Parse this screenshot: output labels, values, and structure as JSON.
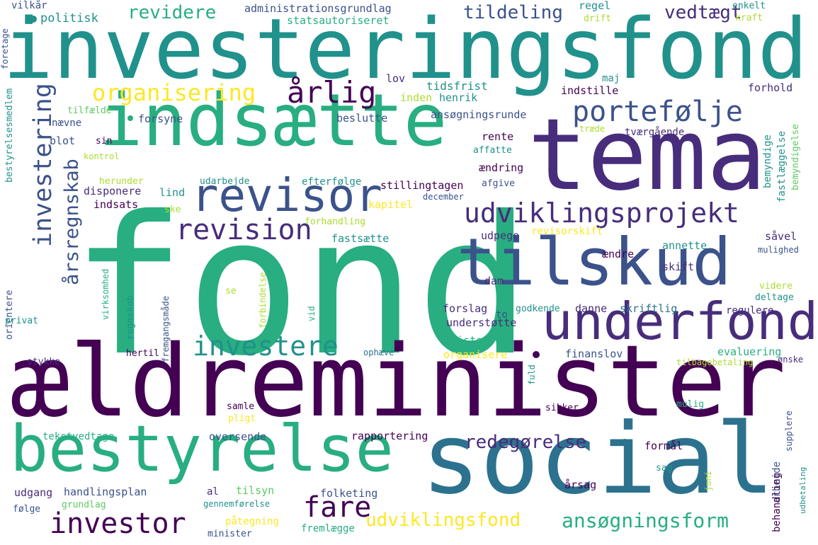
{
  "palette": {
    "c1": "#440154",
    "c2": "#472d7b",
    "c3": "#3b528b",
    "c4": "#2c728e",
    "c5": "#21918c",
    "c6": "#28ae80",
    "c7": "#5ec962",
    "c8": "#addc30",
    "c9": "#fde725"
  },
  "words": [
    {
      "t": "fond",
      "c": "c6"
    },
    {
      "t": "ældreminister",
      "c": "c1"
    },
    {
      "t": "investeringsfond",
      "c": "c5"
    },
    {
      "t": "tema",
      "c": "c2"
    },
    {
      "t": "social",
      "c": "c4"
    },
    {
      "t": "indsætte",
      "c": "c6"
    },
    {
      "t": "bestyrelse",
      "c": "c6"
    },
    {
      "t": "tilskud",
      "c": "c3"
    },
    {
      "t": "underfond",
      "c": "c2"
    },
    {
      "t": "revisor",
      "c": "c3"
    },
    {
      "t": "udviklingsprojekt",
      "c": "c2"
    },
    {
      "t": "portefølje",
      "c": "c3"
    },
    {
      "t": "investering",
      "c": "c3"
    },
    {
      "t": "årsregnskab",
      "c": "c3"
    },
    {
      "t": "revision",
      "c": "c2"
    },
    {
      "t": "investere",
      "c": "c5"
    },
    {
      "t": "investor",
      "c": "c1"
    },
    {
      "t": "fare",
      "c": "c1"
    },
    {
      "t": "årlig",
      "c": "c1"
    },
    {
      "t": "organisering",
      "c": "c9"
    },
    {
      "t": "ansøgningsform",
      "c": "c6"
    },
    {
      "t": "udviklingsfond",
      "c": "c9"
    },
    {
      "t": "redegørelse",
      "c": "c2"
    },
    {
      "t": "revidere",
      "c": "c6"
    },
    {
      "t": "tildeling",
      "c": "c3"
    },
    {
      "t": "vedtægt",
      "c": "c2"
    },
    {
      "t": "politisk",
      "c": "c5"
    },
    {
      "t": "administrationsgrundlag",
      "c": "c3"
    },
    {
      "t": "statsautoriseret",
      "c": "c6"
    },
    {
      "t": "regel",
      "c": "c5"
    },
    {
      "t": "drift",
      "c": "c8"
    },
    {
      "t": "enkelt",
      "c": "c5"
    },
    {
      "t": "kraft",
      "c": "c8"
    },
    {
      "t": "vilkår",
      "c": "c3"
    },
    {
      "t": "foretage",
      "c": "c3"
    },
    {
      "t": "lov",
      "c": "c2"
    },
    {
      "t": "maj",
      "c": "c5"
    },
    {
      "t": "tidsfrist",
      "c": "c5"
    },
    {
      "t": "inden",
      "c": "c8"
    },
    {
      "t": "henrik",
      "c": "c5"
    },
    {
      "t": "indstille",
      "c": "c1"
    },
    {
      "t": "forhold",
      "c": "c2"
    },
    {
      "t": "fastlæggelse",
      "c": "c5"
    },
    {
      "t": "bemyndigelse",
      "c": "c7"
    },
    {
      "t": "bemyndige",
      "c": "c5"
    },
    {
      "t": "tilfælde",
      "c": "c7"
    },
    {
      "t": "forsyne",
      "c": "c3"
    },
    {
      "t": "nævne",
      "c": "c3"
    },
    {
      "t": "beslutte",
      "c": "c3"
    },
    {
      "t": "ansøgningsrunde",
      "c": "c3"
    },
    {
      "t": "rente",
      "c": "c1"
    },
    {
      "t": "tværgående",
      "c": "c2"
    },
    {
      "t": "træde",
      "c": "c8"
    },
    {
      "t": "affatte",
      "c": "c5"
    },
    {
      "t": "blot",
      "c": "c3"
    },
    {
      "t": "sin",
      "c": "c1"
    },
    {
      "t": "kontrol",
      "c": "c8"
    },
    {
      "t": "ændring",
      "c": "c1"
    },
    {
      "t": "herunder",
      "c": "c8"
    },
    {
      "t": "udarbejde",
      "c": "c5"
    },
    {
      "t": "efterfølge",
      "c": "c5"
    },
    {
      "t": "stillingtagen",
      "c": "c1"
    },
    {
      "t": "afgive",
      "c": "c3"
    },
    {
      "t": "december",
      "c": "c3"
    },
    {
      "t": "disponere",
      "c": "c2"
    },
    {
      "t": "indsats",
      "c": "c1"
    },
    {
      "t": "lind",
      "c": "c5"
    },
    {
      "t": "kapitel",
      "c": "c9"
    },
    {
      "t": "ske",
      "c": "c8"
    },
    {
      "t": "forhandling",
      "c": "c8"
    },
    {
      "t": "udpege",
      "c": "c2"
    },
    {
      "t": "revisorskift",
      "c": "c9"
    },
    {
      "t": "såvel",
      "c": "c2"
    },
    {
      "t": "annette",
      "c": "c5"
    },
    {
      "t": "mulighed",
      "c": "c3"
    },
    {
      "t": "fastsætte",
      "c": "c5"
    },
    {
      "t": "ændre",
      "c": "c1"
    },
    {
      "t": "skift",
      "c": "c2"
    },
    {
      "t": "bestyrelsesmedlem",
      "c": "c5"
    },
    {
      "t": "orientere",
      "c": "c3"
    },
    {
      "t": "privat",
      "c": "c5"
    },
    {
      "t": "virksomhed",
      "c": "c6"
    },
    {
      "t": "forbindelse",
      "c": "c8"
    },
    {
      "t": "regnskab",
      "c": "c5"
    },
    {
      "t": "fremgangsmåde",
      "c": "c3"
    },
    {
      "t": "se",
      "c": "c8"
    },
    {
      "t": "vid",
      "c": "c6"
    },
    {
      "t": "dam",
      "c": "c2"
    },
    {
      "t": "forslag",
      "c": "c2"
    },
    {
      "t": "to",
      "c": "c3"
    },
    {
      "t": "godkende",
      "c": "c5"
    },
    {
      "t": "danne",
      "c": "c2"
    },
    {
      "t": "skriftlig",
      "c": "c4"
    },
    {
      "t": "regulere",
      "c": "c2"
    },
    {
      "t": "deltage",
      "c": "c5"
    },
    {
      "t": "videre",
      "c": "c8"
    },
    {
      "t": "understøtte",
      "c": "c2"
    },
    {
      "t": "kristensen",
      "c": "c6"
    },
    {
      "t": "organisere",
      "c": "c9"
    },
    {
      "t": "evaluering",
      "c": "c6"
    },
    {
      "t": "finanslov",
      "c": "c3"
    },
    {
      "t": "hertil",
      "c": "c1"
    },
    {
      "t": "ophæve",
      "c": "c4"
    },
    {
      "t": "stykke",
      "c": "c2"
    },
    {
      "t": "tilbagebetaling",
      "c": "c8"
    },
    {
      "t": "ønske",
      "c": "c2"
    },
    {
      "t": "fuld",
      "c": "c5"
    },
    {
      "t": "sikker",
      "c": "c1"
    },
    {
      "t": "mulig",
      "c": "c6"
    },
    {
      "t": "samle",
      "c": "c1"
    },
    {
      "t": "pligt",
      "c": "c9"
    },
    {
      "t": "supplere",
      "c": "c3"
    },
    {
      "t": "udbetaling",
      "c": "c5"
    },
    {
      "t": "tekstvedtage",
      "c": "c6"
    },
    {
      "t": "oversende",
      "c": "c3"
    },
    {
      "t": "rapportering",
      "c": "c1"
    },
    {
      "t": "formål",
      "c": "c1"
    },
    {
      "t": "arbejde",
      "c": "c3"
    },
    {
      "t": "behandling",
      "c": "c1"
    },
    {
      "t": "juni",
      "c": "c8"
    },
    {
      "t": "sag",
      "c": "c5"
    },
    {
      "t": "årsag",
      "c": "c1"
    },
    {
      "t": "udgang",
      "c": "c2"
    },
    {
      "t": "handlingsplan",
      "c": "c3"
    },
    {
      "t": "al",
      "c": "c2"
    },
    {
      "t": "tilsyn",
      "c": "c7"
    },
    {
      "t": "folketing",
      "c": "c3"
    },
    {
      "t": "følge",
      "c": "c3"
    },
    {
      "t": "grundlag",
      "c": "c7"
    },
    {
      "t": "gennemførelse",
      "c": "c5"
    },
    {
      "t": "påtegning",
      "c": "c9"
    },
    {
      "t": "fremlægge",
      "c": "c6"
    },
    {
      "t": "minister",
      "c": "c3"
    }
  ]
}
